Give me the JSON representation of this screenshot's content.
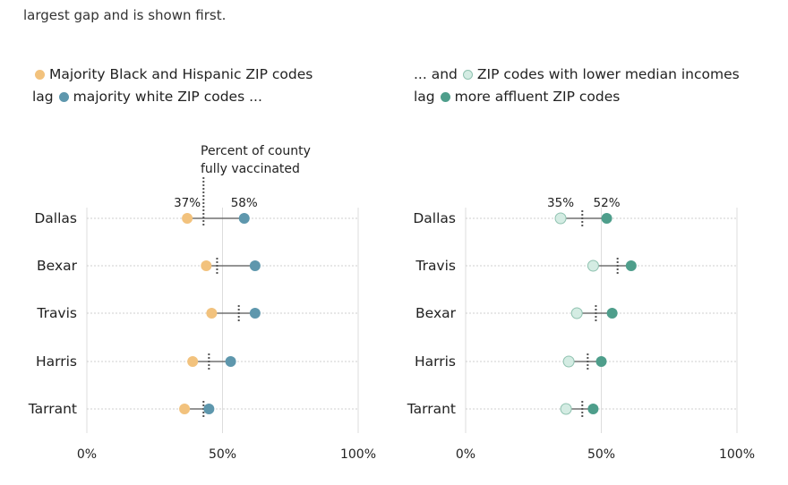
{
  "intro_text": "largest gap and is shown first.",
  "legend_left": {
    "line1_text": "Majority Black and Hispanic ZIP codes",
    "line2_prefix": "lag",
    "line2_text": "majority white ZIP codes ..."
  },
  "legend_right": {
    "line1_prefix": "... and",
    "line1_text": "ZIP codes with lower median incomes",
    "line2_prefix": "lag",
    "line2_text": "more affluent ZIP codes"
  },
  "colors": {
    "majority_minority": "#f2c27d",
    "majority_white": "#5e97ad",
    "lower_income": "#d4ece3",
    "more_affluent": "#4e9e8b"
  },
  "chart_data": [
    {
      "type": "dot",
      "annotation": "Percent of county fully vaccinated",
      "x_ticks": [
        "0%",
        "50%",
        "100%"
      ],
      "xlim": [
        0,
        100
      ],
      "categories": [
        "Dallas",
        "Bexar",
        "Travis",
        "Harris",
        "Tarrant"
      ],
      "series": [
        {
          "name": "Majority Black and Hispanic ZIP codes",
          "values": [
            37,
            44,
            46,
            39,
            36
          ]
        },
        {
          "name": "majority white ZIP codes",
          "values": [
            58,
            62,
            62,
            53,
            45
          ]
        }
      ],
      "county_rate": [
        43,
        48,
        56,
        45,
        43
      ],
      "value_labels": [
        "37%",
        "58%"
      ]
    },
    {
      "type": "dot",
      "x_ticks": [
        "0%",
        "50%",
        "100%"
      ],
      "xlim": [
        0,
        100
      ],
      "categories": [
        "Dallas",
        "Travis",
        "Bexar",
        "Harris",
        "Tarrant"
      ],
      "series": [
        {
          "name": "ZIP codes with lower median incomes",
          "values": [
            35,
            47,
            41,
            38,
            37
          ]
        },
        {
          "name": "more affluent ZIP codes",
          "values": [
            52,
            61,
            54,
            50,
            47
          ]
        }
      ],
      "county_rate": [
        43,
        56,
        48,
        45,
        43
      ],
      "value_labels": [
        "35%",
        "52%"
      ]
    }
  ]
}
